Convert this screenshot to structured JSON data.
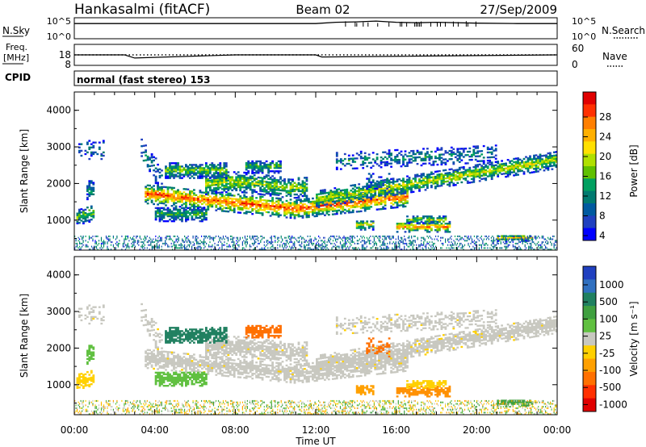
{
  "header": {
    "station": "Hankasalmi (fitACF)",
    "beam": "Beam 02",
    "date": "27/Sep/2009"
  },
  "noise_panel": {
    "left_label": "N.Sky",
    "right_label": "N.Search",
    "left_ticks": [
      "10^5",
      "10^0"
    ],
    "right_ticks": [
      "10^5",
      "10^0"
    ]
  },
  "freq_panel": {
    "left_label_line1": "Freq.",
    "left_label_line2": "[MHz]",
    "right_label": "Nave",
    "left_ticks": [
      "18",
      "8"
    ],
    "right_ticks": [
      "60",
      "0"
    ]
  },
  "cpid_panel": {
    "label": "CPID",
    "text": "normal (fast stereo) 153"
  },
  "x_axis": {
    "title": "Time UT",
    "ticks": [
      "00:00",
      "04:00",
      "08:00",
      "12:00",
      "16:00",
      "20:00",
      "00:00"
    ]
  },
  "power_panel": {
    "ylabel": "Slant Range [km]",
    "yticks": [
      "4000",
      "3000",
      "2000",
      "1000"
    ],
    "colorbar_label": "Power [dB]",
    "colorbar_ticks": [
      "28",
      "24",
      "20",
      "16",
      "12",
      "8",
      "4"
    ],
    "colors": [
      "#e00000",
      "#ff3000",
      "#ff7f00",
      "#ffb000",
      "#ffe000",
      "#b0e000",
      "#60c000",
      "#00a060",
      "#007a70",
      "#005aa0",
      "#2040c0",
      "#0000ff"
    ]
  },
  "velocity_panel": {
    "ylabel": "Slant Range [km]",
    "yticks": [
      "4000",
      "3000",
      "2000",
      "1000"
    ],
    "colorbar_label": "Velocity [m s⁻¹]",
    "colorbar_ticks": [
      "1000",
      "500",
      "100",
      "25",
      "-25",
      "-100",
      "-500",
      "-1000"
    ],
    "colors": [
      "#2040c0",
      "#3070c0",
      "#208060",
      "#40a040",
      "#60c040",
      "#c8c8c0",
      "#ffd000",
      "#ffa000",
      "#ff7000",
      "#ff3000",
      "#e00000"
    ]
  },
  "chart_data": [
    {
      "type": "line",
      "title": "N.Sky / N.Search",
      "x_unit": "hours UT",
      "x": [
        0,
        2,
        4,
        6,
        8,
        10,
        12,
        13,
        14,
        15,
        16,
        17,
        18,
        20,
        22,
        24
      ],
      "series": [
        {
          "values_log10": [
            4.0,
            4.0,
            4.0,
            4.0,
            4.0,
            4.0,
            4.0,
            4.3,
            4.4,
            4.6,
            4.3,
            4.2,
            4.3,
            4.1,
            4.0,
            4.0
          ]
        }
      ],
      "ylim": [
        0,
        5
      ]
    },
    {
      "type": "line",
      "title": "Frequency / Nave",
      "x": [
        0,
        2.5,
        3.0,
        8,
        12.0,
        12.3,
        24
      ],
      "series": [
        {
          "values": [
            13,
            13,
            11.5,
            13,
            13,
            12,
            13
          ]
        }
      ],
      "ylim": [
        8,
        18
      ]
    },
    {
      "type": "heatmap",
      "ylabel": "Slant Range [km]",
      "xlabel": "Time UT",
      "xlim": [
        0,
        24
      ],
      "ylim": [
        180,
        4500
      ],
      "colorbar": "Power [dB]",
      "clim": [
        0,
        30
      ],
      "features": [
        {
          "t": [
            1.0,
            3.0
          ],
          "range_km": [
            1800,
            1100
          ],
          "power_db": 14
        },
        {
          "t": [
            3.5,
            16.0
          ],
          "range_km": [
            1100,
            1700
          ],
          "power_db": 26
        },
        {
          "t": [
            12.0,
            24.0
          ],
          "range_km": [
            1500,
            2700
          ],
          "power_db": 16
        },
        {
          "t": [
            16.0,
            18.5
          ],
          "range_km": [
            700,
            950
          ],
          "power_db": 22
        },
        {
          "t": [
            21.0,
            22.5
          ],
          "range_km": [
            450,
            550
          ],
          "power_db": 18
        }
      ]
    },
    {
      "type": "heatmap",
      "ylabel": "Slant Range [km]",
      "xlabel": "Time UT",
      "xlim": [
        0,
        24
      ],
      "ylim": [
        180,
        4500
      ],
      "colorbar": "Velocity [m s⁻¹]",
      "clim": [
        -1000,
        1000
      ],
      "features": [
        {
          "t": [
            4.0,
            16.0
          ],
          "range_km": [
            1100,
            2300
          ],
          "velocity": 0
        },
        {
          "t": [
            5.0,
            7.0
          ],
          "range_km": [
            2200,
            2700
          ],
          "velocity": 300
        },
        {
          "t": [
            8.0,
            9.5
          ],
          "range_km": [
            2300,
            2600
          ],
          "velocity": -300
        },
        {
          "t": [
            16.0,
            18.5
          ],
          "range_km": [
            700,
            950
          ],
          "velocity": -300
        }
      ]
    }
  ]
}
